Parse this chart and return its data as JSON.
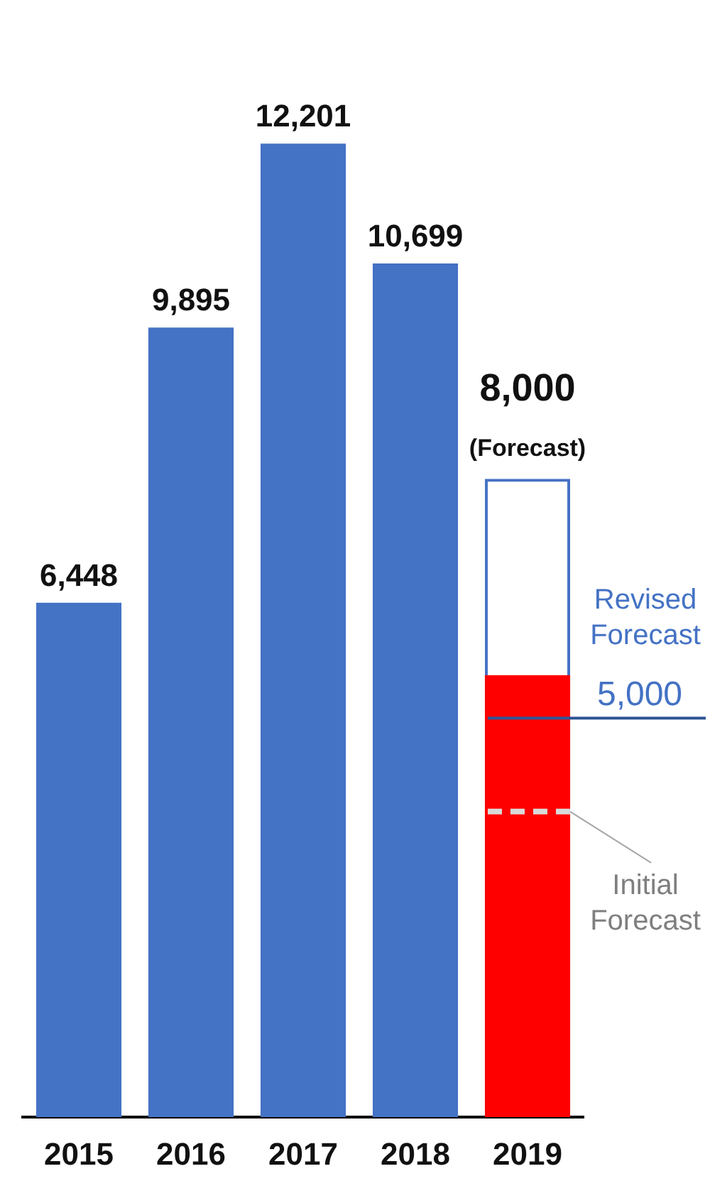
{
  "chart_data": {
    "type": "bar",
    "categories": [
      "2015",
      "2016",
      "2017",
      "2018",
      "2019"
    ],
    "tick_labels": "x",
    "grid": false,
    "legend": false,
    "series": [
      {
        "color": "#4472c4",
        "values": [
          6448,
          9895,
          12201,
          10699,
          null
        ],
        "value_labels": [
          "6,448",
          "9,895",
          "12,201",
          "10,699",
          null
        ]
      },
      {
        "color": "#4472c4",
        "values": [
          null,
          null,
          null,
          null,
          8000
        ],
        "value_labels": [
          null,
          null,
          null,
          null,
          "8,000"
        ]
      },
      {
        "color": "#ff0000",
        "values": [
          null,
          null,
          null,
          null,
          5540
        ]
      }
    ],
    "ref_lines": [
      {
        "axis": "y",
        "value": 5000,
        "label": "Revised Forecast",
        "color": "#2f5597",
        "line_style": "solid"
      },
      {
        "axis": "y",
        "value": 3830,
        "label": "Initial Forecast",
        "color": "#d9d9d9",
        "line_style": "dashed"
      }
    ],
    "annotations": [
      {
        "text": "(Forecast)",
        "x": "2019",
        "y": 8000
      },
      {
        "text": "5,000",
        "x": "2019",
        "y": 5000
      }
    ]
  }
}
